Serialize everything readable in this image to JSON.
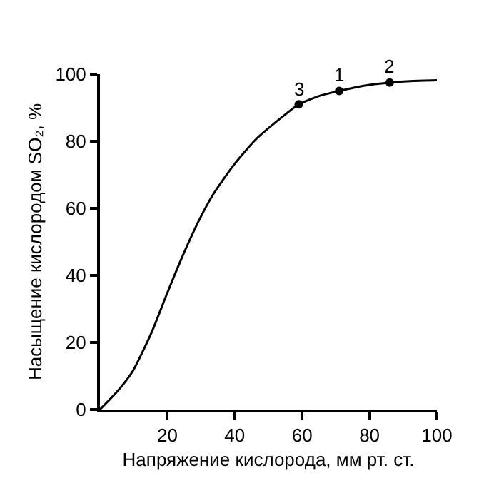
{
  "chart_data": {
    "type": "line",
    "xlabel": "Напряжение кислорода, мм рт. ст.",
    "ylabel": "Насыщение кислородом SO₂, %",
    "xlim": [
      0,
      100
    ],
    "xticks": [
      20,
      40,
      60,
      80,
      100
    ],
    "ylim": [
      0,
      100
    ],
    "yticks": [
      0,
      20,
      40,
      60,
      80,
      100
    ],
    "grid": false,
    "line_style": "solid",
    "series": [
      {
        "color": "#000000",
        "marker": "none",
        "x": [
          0,
          5.4,
          9.7,
          15.3,
          19.8,
          24.5,
          29.4,
          33.7,
          39.7,
          46.4,
          54.9,
          59,
          65,
          71,
          78,
          86,
          93,
          100
        ],
        "values": [
          0,
          5.7,
          11.4,
          22.9,
          34.3,
          45.7,
          56.4,
          64.3,
          72.9,
          80.7,
          87.9,
          91,
          93.5,
          95,
          96.5,
          97.5,
          98,
          98.2
        ]
      },
      {
        "type": "scatter",
        "color": "#000000",
        "marker": "circle",
        "x": [
          59,
          71,
          86
        ],
        "values": [
          91,
          95,
          97.5
        ]
      }
    ],
    "annotations": [
      {
        "text": "3",
        "x": 59,
        "y": 91
      },
      {
        "text": "1",
        "x": 71,
        "y": 95
      },
      {
        "text": "2",
        "x": 86,
        "y": 97.5
      }
    ]
  }
}
